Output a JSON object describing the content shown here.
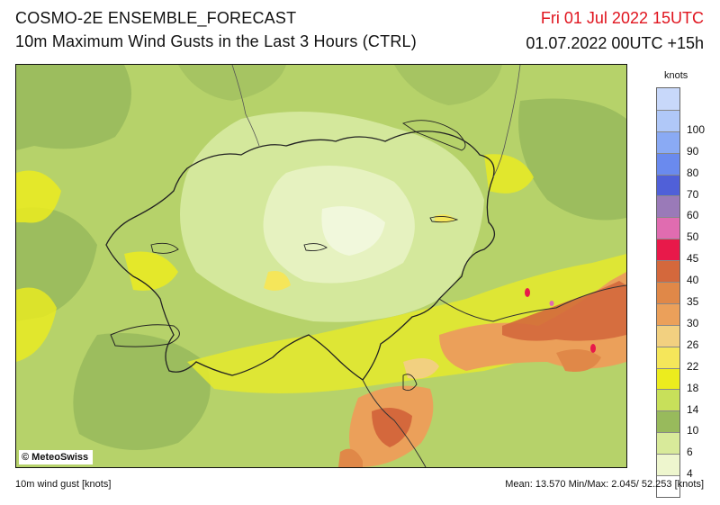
{
  "header": {
    "title": "COSMO-2E ENSEMBLE_FORECAST",
    "subtitle": "10m Maximum Wind Gusts in the Last 3 Hours (CTRL)",
    "valid_time": "Fri 01 Jul 2022 15UTC",
    "run_time": "01.07.2022 00UTC +15h"
  },
  "map": {
    "copyright": "© MeteoSwiss",
    "icon": "copyright-icon"
  },
  "legend": {
    "unit": "knots",
    "swatches": [
      {
        "label": "",
        "color": "#c8d8fa"
      },
      {
        "label": "100",
        "color": "#b0c8f8"
      },
      {
        "label": "90",
        "color": "#8aaaf4"
      },
      {
        "label": "80",
        "color": "#6a8aee"
      },
      {
        "label": "70",
        "color": "#5060d8"
      },
      {
        "label": "60",
        "color": "#9a7ab8"
      },
      {
        "label": "50",
        "color": "#e06cb0"
      },
      {
        "label": "45",
        "color": "#e8194a"
      },
      {
        "label": "40",
        "color": "#d4683c"
      },
      {
        "label": "35",
        "color": "#e08848"
      },
      {
        "label": "30",
        "color": "#eba05a"
      },
      {
        "label": "26",
        "color": "#f2d080"
      },
      {
        "label": "22",
        "color": "#f5e65a"
      },
      {
        "label": "18",
        "color": "#ecec1e"
      },
      {
        "label": "14",
        "color": "#c8e05a"
      },
      {
        "label": "10",
        "color": "#98ba5c"
      },
      {
        "label": "6",
        "color": "#d8ea9a"
      },
      {
        "label": "4",
        "color": "#eef6ce"
      },
      {
        "label": "",
        "color": "#ffffff"
      }
    ]
  },
  "footer": {
    "left": "10m wind gust [knots]",
    "right": "Mean:  13.570 Min/Max:   2.045/ 52.253 [knots]"
  }
}
